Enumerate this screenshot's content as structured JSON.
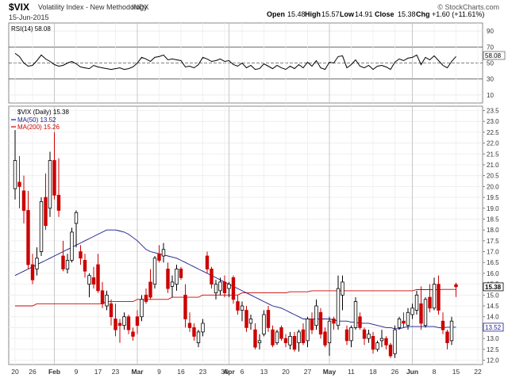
{
  "header": {
    "symbol": "$VIX",
    "name": "Volatility Index - New Methodology",
    "exchange": "INDX",
    "date": "15-Jun-2015",
    "open_label": "Open",
    "open": "15.48",
    "high_label": "High",
    "high": "15.57",
    "low_label": "Low",
    "low": "14.91",
    "close_label": "Close",
    "close": "15.38",
    "chg_label": "Chg",
    "chg": "+1.60 (+11.61%)",
    "copyright": "© StockCharts.com"
  },
  "rsi_panel": {
    "label": "RSI(14) 58.08",
    "last_value": "58.08",
    "ticks": [
      "90",
      "70",
      "50",
      "30",
      "10"
    ],
    "tick_values": [
      90,
      70,
      50,
      30,
      10
    ],
    "overbought": 70,
    "midline": 50,
    "oversold": 30,
    "ylim": [
      0,
      100
    ],
    "line_color": "#000000"
  },
  "price_panel": {
    "label": "$VIX (Daily) 15.38",
    "ma50_label": "MA(50) 13.52",
    "ma200_label": "MA(200) 15.26",
    "last_close_tag": "15.38",
    "ma50_tag": "13.52",
    "ticks": [
      "23.5",
      "23.0",
      "22.5",
      "22.0",
      "21.5",
      "21.0",
      "20.5",
      "20.0",
      "19.5",
      "19.0",
      "18.5",
      "18.0",
      "17.5",
      "17.0",
      "16.5",
      "16.0",
      "15.5",
      "15.0",
      "14.5",
      "14.0",
      "13.5",
      "13.0",
      "12.5",
      "12.0"
    ],
    "ylim": [
      11.8,
      23.7
    ],
    "up_color": "#000000",
    "down_color": "#cc0000",
    "ma50_color": "#1a1a8c",
    "ma200_color": "#cc0000"
  },
  "x_axis": {
    "labels": [
      "20",
      "26",
      "Feb",
      "9",
      "17",
      "23",
      "Mar",
      "9",
      "16",
      "23",
      "30",
      "Apr",
      "6",
      "13",
      "20",
      "27",
      "May",
      "11",
      "18",
      "26",
      "Jun",
      "8",
      "15",
      "22"
    ],
    "bold": [
      "Feb",
      "Mar",
      "Apr",
      "May",
      "Jun"
    ],
    "label_days": [
      0,
      4,
      9,
      14,
      19,
      23,
      28,
      33,
      38,
      43,
      48,
      49,
      52,
      57,
      62,
      67,
      72,
      77,
      82,
      87,
      91,
      96,
      101,
      106
    ]
  },
  "chart_data": {
    "type": "candlestick",
    "title": "$VIX (Daily)",
    "x_note": "trading-day index from 2015-01-20 (0) to 2015-06-15 (101)",
    "candles": [
      {
        "o": 19.9,
        "h": 22.6,
        "l": 19.4,
        "c": 21.2
      },
      {
        "o": 20.2,
        "h": 21.4,
        "l": 19.0,
        "c": 20.0
      },
      {
        "o": 19.8,
        "h": 20.5,
        "l": 18.3,
        "c": 18.9
      },
      {
        "o": 18.9,
        "h": 19.8,
        "l": 16.2,
        "c": 16.4
      },
      {
        "o": 16.4,
        "h": 16.9,
        "l": 15.5,
        "c": 15.7
      },
      {
        "o": 16.2,
        "h": 17.2,
        "l": 15.9,
        "c": 16.7
      },
      {
        "o": 17.0,
        "h": 19.5,
        "l": 16.8,
        "c": 19.3
      },
      {
        "o": 19.5,
        "h": 20.6,
        "l": 18.0,
        "c": 18.2
      },
      {
        "o": 19.0,
        "h": 21.6,
        "l": 18.6,
        "c": 21.2
      },
      {
        "o": 21.2,
        "h": 22.5,
        "l": 19.4,
        "c": 19.6
      },
      {
        "o": 19.6,
        "h": 21.3,
        "l": 18.6,
        "c": 18.9
      },
      {
        "o": 16.8,
        "h": 17.5,
        "l": 16.1,
        "c": 16.2
      },
      {
        "o": 16.2,
        "h": 16.9,
        "l": 16.0,
        "c": 16.6
      },
      {
        "o": 16.6,
        "h": 18.1,
        "l": 16.5,
        "c": 17.9
      },
      {
        "o": 18.3,
        "h": 18.9,
        "l": 17.2,
        "c": 18.8
      },
      {
        "o": 17.0,
        "h": 17.3,
        "l": 16.4,
        "c": 16.7
      },
      {
        "o": 16.6,
        "h": 16.9,
        "l": 15.8,
        "c": 16.1
      },
      {
        "o": 15.5,
        "h": 16.0,
        "l": 14.9,
        "c": 15.9
      },
      {
        "o": 15.8,
        "h": 16.3,
        "l": 15.3,
        "c": 15.5
      },
      {
        "o": 16.4,
        "h": 16.9,
        "l": 15.1,
        "c": 15.2
      },
      {
        "o": 15.2,
        "h": 15.6,
        "l": 14.4,
        "c": 14.6
      },
      {
        "o": 14.5,
        "h": 15.2,
        "l": 14.3,
        "c": 15.0
      },
      {
        "o": 14.6,
        "h": 14.8,
        "l": 13.6,
        "c": 14.0
      },
      {
        "o": 13.9,
        "h": 14.6,
        "l": 13.1,
        "c": 13.4
      },
      {
        "o": 13.7,
        "h": 13.9,
        "l": 12.8,
        "c": 13.6
      },
      {
        "o": 13.6,
        "h": 14.2,
        "l": 13.4,
        "c": 14.0
      },
      {
        "o": 14.0,
        "h": 14.1,
        "l": 13.2,
        "c": 13.4
      },
      {
        "o": 13.3,
        "h": 13.5,
        "l": 12.9,
        "c": 13.1
      },
      {
        "o": 14.0,
        "h": 14.3,
        "l": 13.2,
        "c": 13.6
      },
      {
        "o": 14.0,
        "h": 15.0,
        "l": 13.8,
        "c": 14.8
      },
      {
        "o": 15.0,
        "h": 15.3,
        "l": 14.6,
        "c": 14.7
      },
      {
        "o": 15.6,
        "h": 16.2,
        "l": 14.8,
        "c": 14.9
      },
      {
        "o": 15.5,
        "h": 16.8,
        "l": 15.3,
        "c": 16.7
      },
      {
        "o": 16.9,
        "h": 17.3,
        "l": 16.5,
        "c": 16.6
      },
      {
        "o": 16.8,
        "h": 17.4,
        "l": 16.5,
        "c": 17.1
      },
      {
        "o": 16.2,
        "h": 16.5,
        "l": 15.1,
        "c": 15.3
      },
      {
        "o": 15.4,
        "h": 15.9,
        "l": 14.9,
        "c": 15.6
      },
      {
        "o": 15.5,
        "h": 16.4,
        "l": 15.2,
        "c": 16.2
      },
      {
        "o": 16.2,
        "h": 16.3,
        "l": 15.7,
        "c": 15.8
      },
      {
        "o": 15.0,
        "h": 15.5,
        "l": 13.5,
        "c": 13.9
      },
      {
        "o": 13.7,
        "h": 14.2,
        "l": 13.3,
        "c": 13.5
      },
      {
        "o": 13.5,
        "h": 13.7,
        "l": 12.9,
        "c": 13.1
      },
      {
        "o": 12.8,
        "h": 13.4,
        "l": 12.6,
        "c": 13.3
      },
      {
        "o": 13.3,
        "h": 13.9,
        "l": 13.1,
        "c": 13.7
      },
      {
        "o": 16.8,
        "h": 17.0,
        "l": 16.0,
        "c": 16.2
      },
      {
        "o": 16.2,
        "h": 16.3,
        "l": 15.3,
        "c": 15.5
      },
      {
        "o": 15.1,
        "h": 15.7,
        "l": 14.8,
        "c": 15.5
      },
      {
        "o": 15.2,
        "h": 15.8,
        "l": 15.0,
        "c": 15.6
      },
      {
        "o": 15.6,
        "h": 15.9,
        "l": 14.9,
        "c": 15.1
      },
      {
        "o": 15.3,
        "h": 15.6,
        "l": 14.9,
        "c": 15.5
      },
      {
        "o": 15.8,
        "h": 15.9,
        "l": 14.6,
        "c": 14.8
      },
      {
        "o": 14.7,
        "h": 15.0,
        "l": 14.1,
        "c": 14.3
      },
      {
        "o": 14.3,
        "h": 14.7,
        "l": 13.8,
        "c": 14.5
      },
      {
        "o": 14.3,
        "h": 14.5,
        "l": 13.3,
        "c": 13.5
      },
      {
        "o": 13.7,
        "h": 14.1,
        "l": 13.4,
        "c": 13.9
      },
      {
        "o": 13.4,
        "h": 13.7,
        "l": 12.5,
        "c": 12.6
      },
      {
        "o": 12.8,
        "h": 13.2,
        "l": 12.5,
        "c": 12.9
      },
      {
        "o": 13.2,
        "h": 14.3,
        "l": 13.1,
        "c": 14.1
      },
      {
        "o": 14.3,
        "h": 14.5,
        "l": 13.3,
        "c": 13.5
      },
      {
        "o": 13.4,
        "h": 13.6,
        "l": 12.6,
        "c": 12.7
      },
      {
        "o": 12.8,
        "h": 13.4,
        "l": 12.7,
        "c": 13.3
      },
      {
        "o": 13.5,
        "h": 13.6,
        "l": 12.9,
        "c": 13.0
      },
      {
        "o": 13.0,
        "h": 13.2,
        "l": 12.6,
        "c": 12.8
      },
      {
        "o": 12.7,
        "h": 13.3,
        "l": 12.5,
        "c": 13.1
      },
      {
        "o": 13.1,
        "h": 13.3,
        "l": 12.4,
        "c": 12.5
      },
      {
        "o": 12.8,
        "h": 13.4,
        "l": 12.4,
        "c": 13.3
      },
      {
        "o": 13.4,
        "h": 13.7,
        "l": 12.7,
        "c": 12.8
      },
      {
        "o": 12.9,
        "h": 14.0,
        "l": 12.6,
        "c": 13.9
      },
      {
        "o": 13.9,
        "h": 14.2,
        "l": 13.2,
        "c": 13.4
      },
      {
        "o": 13.6,
        "h": 14.8,
        "l": 13.4,
        "c": 14.5
      },
      {
        "o": 14.2,
        "h": 14.4,
        "l": 13.0,
        "c": 13.2
      },
      {
        "o": 13.3,
        "h": 13.5,
        "l": 12.6,
        "c": 12.7
      },
      {
        "o": 12.8,
        "h": 14.0,
        "l": 12.2,
        "c": 13.8
      },
      {
        "o": 13.9,
        "h": 14.0,
        "l": 13.4,
        "c": 13.7
      },
      {
        "o": 13.6,
        "h": 15.9,
        "l": 13.4,
        "c": 15.3
      },
      {
        "o": 15.0,
        "h": 15.9,
        "l": 14.3,
        "c": 15.6
      },
      {
        "o": 13.4,
        "h": 13.6,
        "l": 12.7,
        "c": 12.9
      },
      {
        "o": 12.9,
        "h": 13.6,
        "l": 12.6,
        "c": 13.5
      },
      {
        "o": 13.5,
        "h": 14.9,
        "l": 13.4,
        "c": 14.7
      },
      {
        "o": 14.0,
        "h": 14.2,
        "l": 13.4,
        "c": 13.5
      },
      {
        "o": 13.4,
        "h": 13.5,
        "l": 12.7,
        "c": 13.0
      },
      {
        "o": 13.0,
        "h": 13.4,
        "l": 12.8,
        "c": 13.2
      },
      {
        "o": 13.1,
        "h": 13.3,
        "l": 12.3,
        "c": 12.5
      },
      {
        "o": 12.5,
        "h": 12.9,
        "l": 12.4,
        "c": 12.8
      },
      {
        "o": 12.9,
        "h": 13.4,
        "l": 12.6,
        "c": 13.0
      },
      {
        "o": 13.0,
        "h": 13.1,
        "l": 12.5,
        "c": 12.7
      },
      {
        "o": 12.7,
        "h": 12.8,
        "l": 12.1,
        "c": 12.2
      },
      {
        "o": 12.3,
        "h": 13.6,
        "l": 12.1,
        "c": 13.4
      },
      {
        "o": 13.5,
        "h": 14.0,
        "l": 13.4,
        "c": 13.9
      },
      {
        "o": 13.8,
        "h": 14.2,
        "l": 13.5,
        "c": 13.7
      },
      {
        "o": 13.6,
        "h": 14.4,
        "l": 13.4,
        "c": 14.2
      },
      {
        "o": 14.1,
        "h": 14.6,
        "l": 13.9,
        "c": 14.4
      },
      {
        "o": 14.3,
        "h": 15.2,
        "l": 14.1,
        "c": 15.0
      },
      {
        "o": 14.6,
        "h": 15.4,
        "l": 13.4,
        "c": 13.7
      },
      {
        "o": 13.6,
        "h": 14.9,
        "l": 13.5,
        "c": 14.8
      },
      {
        "o": 14.9,
        "h": 15.5,
        "l": 14.2,
        "c": 14.4
      },
      {
        "o": 14.4,
        "h": 15.8,
        "l": 14.3,
        "c": 15.5
      },
      {
        "o": 15.5,
        "h": 15.9,
        "l": 14.1,
        "c": 14.3
      },
      {
        "o": 13.8,
        "h": 14.2,
        "l": 13.2,
        "c": 13.4
      },
      {
        "o": 13.3,
        "h": 13.4,
        "l": 12.5,
        "c": 12.8
      },
      {
        "o": 12.9,
        "h": 14.0,
        "l": 12.7,
        "c": 13.8
      },
      {
        "o": 15.48,
        "h": 15.57,
        "l": 14.91,
        "c": 15.38
      }
    ],
    "ma50": [
      15.9,
      16.0,
      16.1,
      16.2,
      16.3,
      16.4,
      16.5,
      16.6,
      16.7,
      16.8,
      16.9,
      17.0,
      17.1,
      17.2,
      17.3,
      17.4,
      17.5,
      17.6,
      17.7,
      17.8,
      17.9,
      18.0,
      18.0,
      18.0,
      17.95,
      17.9,
      17.8,
      17.65,
      17.5,
      17.3,
      17.1,
      17.0,
      16.95,
      16.9,
      16.85,
      16.8,
      16.75,
      16.7,
      16.6,
      16.5,
      16.4,
      16.3,
      16.2,
      16.1,
      16.0,
      15.9,
      15.8,
      15.7,
      15.6,
      15.5,
      15.4,
      15.3,
      15.2,
      15.1,
      15.0,
      14.9,
      14.8,
      14.7,
      14.6,
      14.5,
      14.45,
      14.4,
      14.3,
      14.2,
      14.1,
      14.0,
      13.9,
      13.9,
      13.9,
      13.9,
      13.9,
      13.9,
      13.9,
      13.85,
      13.8,
      13.8,
      13.8,
      13.75,
      13.75,
      13.7,
      13.7,
      13.7,
      13.65,
      13.6,
      13.55,
      13.5,
      13.5,
      13.45,
      13.45,
      13.5,
      13.55,
      13.55,
      13.55,
      13.55,
      13.55,
      13.55,
      13.55,
      13.5,
      13.5,
      13.52,
      13.52,
      13.52
    ],
    "ma200": [
      14.5,
      14.5,
      14.5,
      14.5,
      14.5,
      14.6,
      14.6,
      14.6,
      14.6,
      14.6,
      14.6,
      14.6,
      14.6,
      14.6,
      14.6,
      14.6,
      14.6,
      14.6,
      14.6,
      14.6,
      14.6,
      14.7,
      14.7,
      14.7,
      14.7,
      14.7,
      14.7,
      14.7,
      14.8,
      14.8,
      14.8,
      14.8,
      14.8,
      14.8,
      14.8,
      14.8,
      14.9,
      14.9,
      14.9,
      14.9,
      14.9,
      14.9,
      14.9,
      15.0,
      15.0,
      15.0,
      15.0,
      15.0,
      15.0,
      15.0,
      15.0,
      15.0,
      15.1,
      15.1,
      15.1,
      15.1,
      15.1,
      15.1,
      15.1,
      15.1,
      15.1,
      15.1,
      15.1,
      15.15,
      15.15,
      15.15,
      15.15,
      15.15,
      15.2,
      15.2,
      15.2,
      15.2,
      15.2,
      15.2,
      15.2,
      15.2,
      15.2,
      15.2,
      15.2,
      15.2,
      15.2,
      15.2,
      15.2,
      15.2,
      15.2,
      15.2,
      15.2,
      15.2,
      15.2,
      15.2,
      15.2,
      15.2,
      15.25,
      15.25,
      15.25,
      15.25,
      15.25,
      15.25,
      15.26,
      15.26,
      15.26,
      15.26
    ],
    "rsi": [
      62,
      58,
      50,
      46,
      47,
      53,
      60,
      55,
      52,
      48,
      46,
      47,
      50,
      52,
      49,
      45,
      44,
      43,
      47,
      45,
      44,
      43,
      42,
      43,
      44,
      42,
      43,
      45,
      50,
      57,
      55,
      52,
      57,
      58,
      60,
      54,
      55,
      54,
      53,
      45,
      46,
      44,
      48,
      57,
      55,
      52,
      53,
      55,
      52,
      53,
      48,
      46,
      50,
      44,
      47,
      42,
      43,
      49,
      46,
      43,
      47,
      44,
      42,
      46,
      43,
      48,
      44,
      51,
      46,
      53,
      44,
      42,
      51,
      50,
      58,
      59,
      44,
      48,
      54,
      46,
      44,
      47,
      42,
      46,
      47,
      45,
      42,
      51,
      55,
      53,
      56,
      57,
      60,
      48,
      57,
      54,
      59,
      53,
      47,
      44,
      52,
      58.08
    ],
    "ylim": [
      11.8,
      23.7
    ]
  }
}
